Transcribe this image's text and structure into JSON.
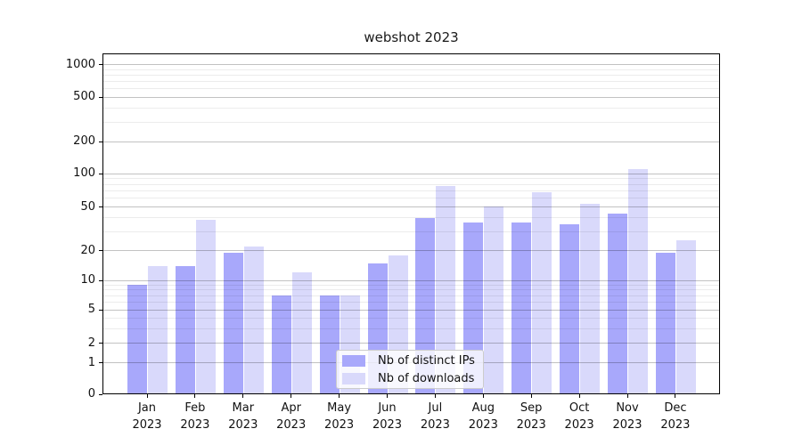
{
  "title": "webshot 2023",
  "chart_data": {
    "type": "bar",
    "title": "webshot 2023",
    "categories": [
      "Jan",
      "Feb",
      "Mar",
      "Apr",
      "May",
      "Jun",
      "Jul",
      "Aug",
      "Sep",
      "Oct",
      "Nov",
      "Dec"
    ],
    "year_label": "2023",
    "series": [
      {
        "name": "Nb of distinct IPs",
        "color": "#a8a8fb",
        "values": [
          9,
          14,
          19,
          7,
          7,
          15,
          40,
          36,
          36,
          35,
          44,
          19
        ]
      },
      {
        "name": "Nb of downloads",
        "color": "#d9d9fb",
        "values": [
          14,
          38,
          22,
          12,
          7,
          18,
          77,
          51,
          68,
          54,
          110,
          25
        ]
      }
    ],
    "xlabel": "",
    "ylabel": "",
    "yscale": "symlog",
    "ylim": [
      0,
      1000
    ],
    "yticks": [
      0,
      1,
      2,
      5,
      10,
      20,
      50,
      100,
      200,
      500,
      1000
    ],
    "ytick_labels": [
      "0",
      "1",
      "2",
      "5",
      "10",
      "20",
      "50",
      "100",
      "200",
      "500",
      "1000"
    ],
    "minor_gridline_values": [
      3,
      4,
      6,
      7,
      8,
      9,
      30,
      40,
      60,
      70,
      80,
      90,
      300,
      400,
      600,
      700,
      800,
      900
    ],
    "grid": true,
    "grid_above_bars": true,
    "legend_position": "lower center"
  },
  "colors": {
    "bar_dark": "#a8a8fb",
    "bar_light": "#d9d9fb",
    "major_grid": "rgba(0,0,0,0.24)",
    "minor_grid": "rgba(0,0,0,0.075)",
    "spine": "#000000",
    "legend_border": "#cccccc"
  }
}
